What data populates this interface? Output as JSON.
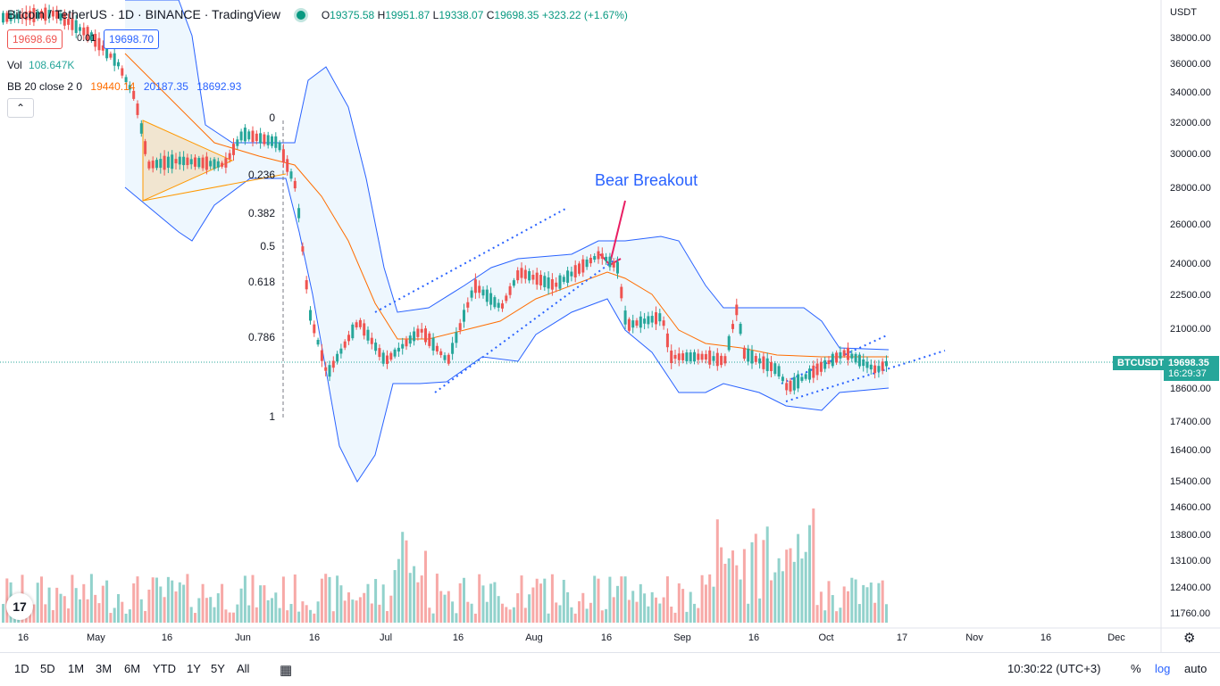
{
  "header": {
    "symbol_title": "Bitcoin / TetherUS · 1D · BINANCE · TradingView",
    "open_label": "O",
    "open": "19375.58",
    "high_label": "H",
    "high": "19951.87",
    "low_label": "L",
    "low": "19338.07",
    "close_label": "C",
    "close": "19698.35",
    "change": "+323.22 (+1.67%)"
  },
  "sell_price": "19698.69",
  "spread": "0.01",
  "buy_price": "19698.70",
  "volume": {
    "label": "Vol",
    "value": "108.647K"
  },
  "bb": {
    "label": "BB 20 close 2 0",
    "basis": "19440.14",
    "upper": "20187.35",
    "lower": "18692.93"
  },
  "collapse_icon": "chevron-up-icon",
  "currency": "USDT",
  "price_axis": [
    "38000.00",
    "36000.00",
    "34000.00",
    "32000.00",
    "30000.00",
    "28000.00",
    "26000.00",
    "24000.00",
    "22500.00",
    "21000.00",
    "18600.00",
    "17400.00",
    "16400.00",
    "15400.00",
    "14600.00",
    "13800.00",
    "13100.00",
    "12400.00",
    "11760.00"
  ],
  "last_price": {
    "symbol": "BTCUSDT",
    "price": "19698.35",
    "countdown": "16:29:37"
  },
  "time_axis": [
    "16",
    "May",
    "16",
    "Jun",
    "16",
    "Jul",
    "16",
    "Aug",
    "16",
    "Sep",
    "16",
    "Oct",
    "17",
    "Nov",
    "16",
    "Dec"
  ],
  "fib_levels": [
    "0",
    "0.236",
    "0.382",
    "0.5",
    "0.618",
    "0.786",
    "1"
  ],
  "annotation": "Bear Breakout",
  "timeframes": [
    "1D",
    "5D",
    "1M",
    "3M",
    "6M",
    "YTD",
    "1Y",
    "5Y",
    "All"
  ],
  "clock": "10:30:22 (UTC+3)",
  "scale_buttons": {
    "percent": "%",
    "log": "log",
    "auto": "auto"
  },
  "colors": {
    "up": "#26a69a",
    "down": "#ef5350",
    "bollinger": "#2962ff",
    "basis": "#ff6d00",
    "accent": "#2962ff"
  }
}
